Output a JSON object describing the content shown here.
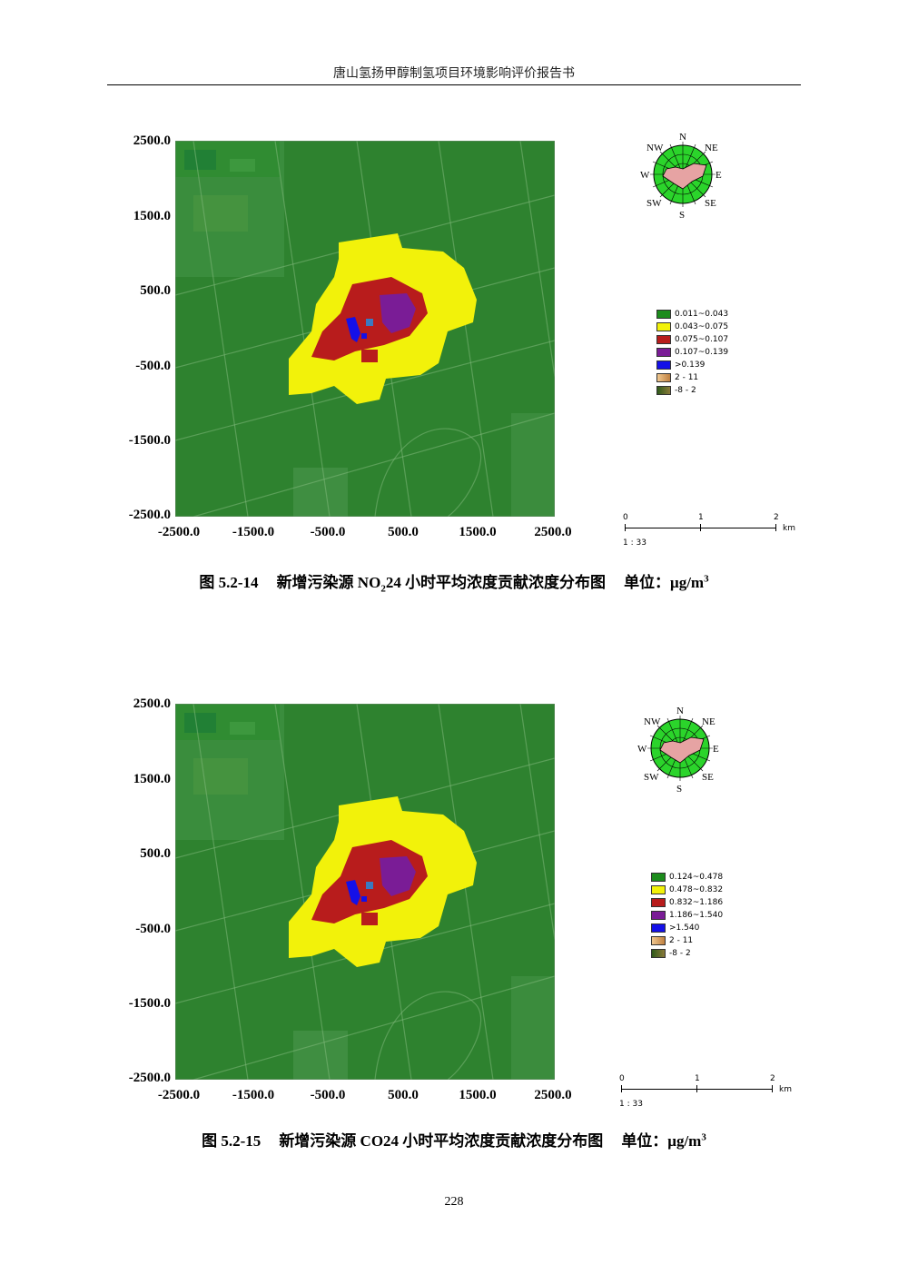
{
  "header": {
    "title": "唐山氢扬甲醇制氢项目环境影响评价报告书"
  },
  "axes": {
    "y_ticks": [
      "2500.0",
      "1500.0",
      "500.0",
      "-500.0",
      "-1500.0",
      "-2500.0"
    ],
    "x_ticks": [
      "-2500.0",
      "-1500.0",
      "-500.0",
      "500.0",
      "1500.0",
      "2500.0"
    ]
  },
  "compass": {
    "labels": [
      "N",
      "NE",
      "E",
      "SE",
      "S",
      "SW",
      "W",
      "NW"
    ]
  },
  "scale": {
    "marks": [
      "0",
      "1",
      "2"
    ],
    "unit": "km",
    "ratio": "1 : 33"
  },
  "colors": {
    "green": "#1c8c1c",
    "yellow": "#f2f20a",
    "red": "#b81c1c",
    "purple": "#7a1c96",
    "blue": "#1410e8",
    "tan": "#d9a86b",
    "olive": "#4f6b2a"
  },
  "figures": [
    {
      "caption": {
        "number": "图 5.2-14",
        "text_pre": "新增污染源 NO",
        "subscript": "2",
        "text_post": "24 小时平均浓度贡献浓度分布图",
        "unit_label": "单位：μg/m",
        "unit_sup": "3"
      },
      "legend": [
        {
          "label": "0.011~0.043",
          "color": "#1c8c1c"
        },
        {
          "label": "0.043~0.075",
          "color": "#f2f20a"
        },
        {
          "label": "0.075~0.107",
          "color": "#b81c1c"
        },
        {
          "label": "0.107~0.139",
          "color": "#7a1c96"
        },
        {
          "label": ">0.139",
          "color": "#1410e8"
        },
        {
          "label": "2 - 11",
          "color": "#d9a86b"
        },
        {
          "label": "-8 - 2",
          "color": "#4f6b2a"
        }
      ]
    },
    {
      "caption": {
        "number": "图 5.2-15",
        "text_pre": "新增污染源 CO24 小时平均浓度贡献浓度分布图",
        "subscript": "",
        "text_post": "",
        "unit_label": "单位：μg/m",
        "unit_sup": "3"
      },
      "legend": [
        {
          "label": "0.124~0.478",
          "color": "#1c8c1c"
        },
        {
          "label": "0.478~0.832",
          "color": "#f2f20a"
        },
        {
          "label": "0.832~1.186",
          "color": "#b81c1c"
        },
        {
          "label": "1.186~1.540",
          "color": "#7a1c96"
        },
        {
          "label": ">1.540",
          "color": "#1410e8"
        },
        {
          "label": "2 - 11",
          "color": "#d9a86b"
        },
        {
          "label": "-8 - 2",
          "color": "#4f6b2a"
        }
      ]
    }
  ],
  "page_number": "228"
}
